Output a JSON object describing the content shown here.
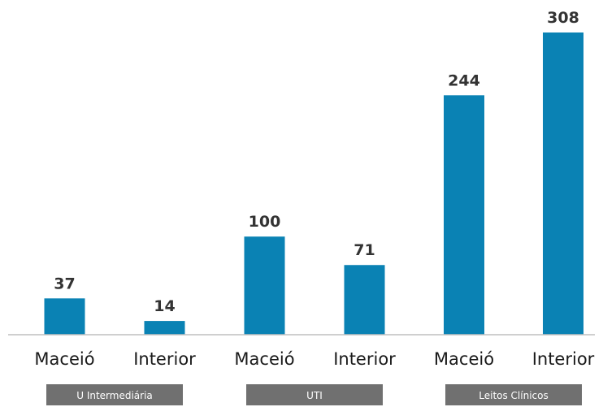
{
  "chart_data": {
    "type": "bar",
    "categories": [
      "Maceió",
      "Interior",
      "Maceió",
      "Interior",
      "Maceió",
      "Interior"
    ],
    "values": [
      37,
      14,
      100,
      71,
      244,
      308
    ],
    "groups": [
      {
        "label": "U Intermediária",
        "categories": [
          0,
          1
        ]
      },
      {
        "label": "UTI",
        "categories": [
          2,
          3
        ]
      },
      {
        "label": "Leitos Clínicos",
        "categories": [
          4,
          5
        ]
      }
    ],
    "ylim": [
      0,
      320
    ],
    "grid": false,
    "legend": "none",
    "bar_color": "#0a82b4"
  }
}
